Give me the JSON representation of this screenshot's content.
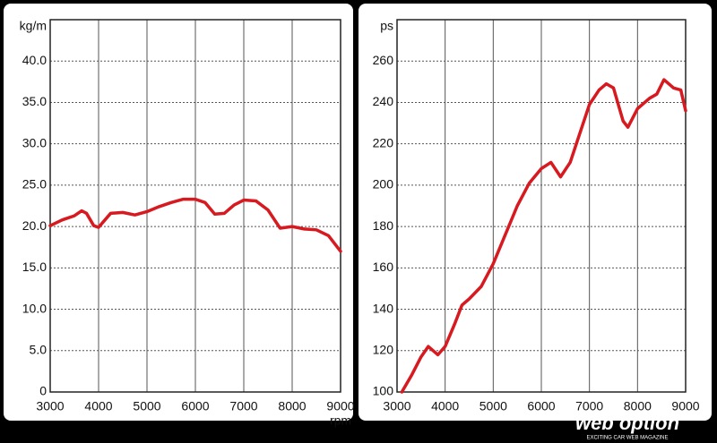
{
  "chart_data": [
    {
      "type": "line",
      "y_label": "kg/m",
      "x_label": "rpm",
      "x": [
        3000,
        3250,
        3500,
        3650,
        3750,
        3900,
        4000,
        4250,
        4500,
        4750,
        5000,
        5250,
        5500,
        5750,
        6000,
        6200,
        6400,
        6600,
        6800,
        7000,
        7250,
        7500,
        7750,
        8000,
        8250,
        8500,
        8750,
        9000
      ],
      "values": [
        20.1,
        20.8,
        21.3,
        21.9,
        21.6,
        20.1,
        19.9,
        21.6,
        21.7,
        21.4,
        21.8,
        22.4,
        22.9,
        23.3,
        23.3,
        22.9,
        21.5,
        21.6,
        22.6,
        23.2,
        23.1,
        22.0,
        19.8,
        20.0,
        19.7,
        19.6,
        18.9,
        17.0
      ],
      "color": "#d71920",
      "xlim": [
        3000,
        9000
      ],
      "xticks": [
        3000,
        4000,
        5000,
        6000,
        7000,
        8000,
        9000
      ],
      "ylim": [
        0,
        45
      ],
      "yticks": [
        0,
        {
          "value": 5,
          "label": "5.0"
        },
        {
          "value": 10,
          "label": "10.0"
        },
        {
          "value": 15,
          "label": "15.0"
        },
        {
          "value": 20,
          "label": "20.0"
        },
        {
          "value": 25,
          "label": "25.0"
        },
        {
          "value": 30,
          "label": "30.0"
        },
        {
          "value": 35,
          "label": "35.0"
        },
        {
          "value": 40,
          "label": "40.0"
        }
      ],
      "grid": true
    },
    {
      "type": "line",
      "y_label": "ps",
      "x": [
        3100,
        3300,
        3500,
        3650,
        3850,
        4000,
        4200,
        4350,
        4500,
        4750,
        5000,
        5250,
        5500,
        5750,
        6000,
        6200,
        6400,
        6600,
        6800,
        7000,
        7200,
        7350,
        7500,
        7700,
        7800,
        8000,
        8250,
        8400,
        8550,
        8750,
        8900,
        9000
      ],
      "values": [
        100,
        108,
        117,
        122,
        118,
        122,
        133,
        142,
        145,
        151,
        162,
        176,
        190,
        201,
        208,
        211,
        204,
        211,
        225,
        239,
        246,
        249,
        247,
        231,
        228,
        237,
        242,
        244,
        251,
        247,
        246,
        236
      ],
      "color": "#d71920",
      "xlim": [
        3000,
        9000
      ],
      "xticks": [
        3000,
        4000,
        5000,
        6000,
        7000,
        8000,
        9000
      ],
      "ylim": [
        100,
        280
      ],
      "yticks": [
        100,
        120,
        140,
        160,
        180,
        200,
        220,
        240,
        260
      ],
      "grid": true
    }
  ],
  "watermark": {
    "logo": "web option",
    "tagline": "EXCITING CAR WEB MAGAZINE"
  }
}
